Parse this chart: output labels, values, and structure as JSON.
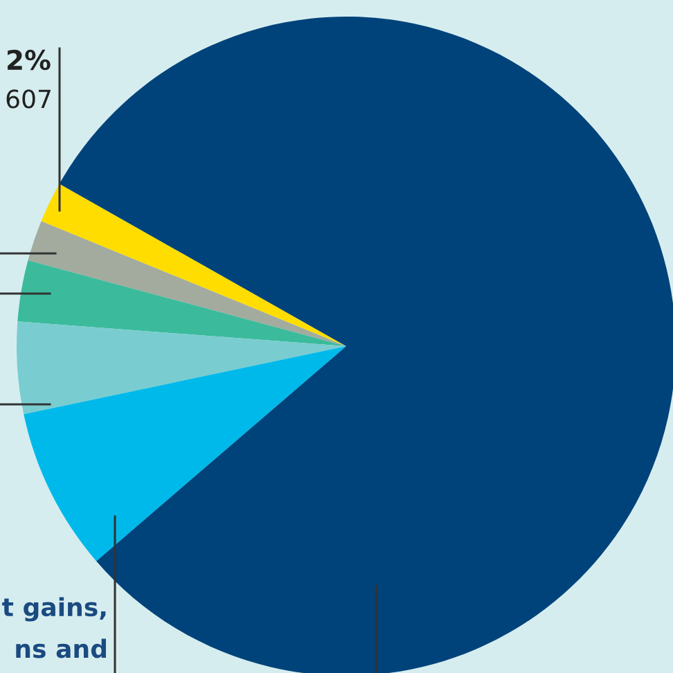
{
  "chart_data": {
    "type": "pie",
    "categories": [
      null,
      null,
      null,
      null,
      null,
      null
    ],
    "values": [
      2,
      2,
      3,
      4.5,
      8,
      80.5
    ],
    "colors": [
      "#ffdd00",
      "#a3ab9f",
      "#3bbb9b",
      "#79cdd0",
      "#00b9eb",
      "#00437a"
    ],
    "annotations": [
      "2%",
      "607",
      "t gains,",
      "ns and"
    ]
  }
}
